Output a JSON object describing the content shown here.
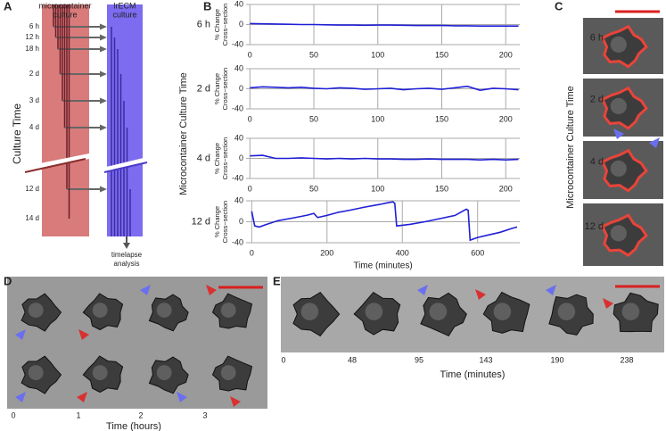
{
  "panel_a": {
    "letter": "A",
    "microcontainer": [
      "microcontainer",
      "culture"
    ],
    "lrecm": [
      "lrECM",
      "culture"
    ],
    "times": [
      "6 h",
      "12 h",
      "18 h",
      "2 d",
      "3 d",
      "4 d",
      "12 d",
      "14 d"
    ],
    "axis_label": "Culture Time",
    "analysis": [
      "timelapse",
      "analysis"
    ]
  },
  "panel_b": {
    "letter": "B",
    "side_label": "Microcontainer Culture Time"
  },
  "chart_data": [
    {
      "type": "line",
      "row_label": "6 h",
      "ylabel": [
        "% Change",
        "Cross−section"
      ],
      "x": [
        0,
        10,
        20,
        30,
        40,
        50,
        60,
        70,
        80,
        90,
        100,
        110,
        120,
        130,
        140,
        150,
        160,
        170,
        180,
        190,
        200,
        210
      ],
      "series": [
        {
          "color": "#1f1fd6",
          "values": [
            2,
            1.5,
            1,
            0.5,
            0,
            0,
            -0.5,
            -1,
            -1,
            -1.5,
            -1,
            -1,
            -1.5,
            -2,
            -2,
            -2,
            -2.5,
            -2.5,
            -3,
            -3,
            -3,
            -3
          ]
        }
      ],
      "xlim": [
        -3,
        211
      ],
      "ylim": [
        -40,
        40
      ],
      "xticks": [
        0,
        50,
        100,
        150,
        200
      ],
      "yticks": [
        -40,
        0,
        40
      ],
      "grid": true
    },
    {
      "type": "line",
      "row_label": "2 d",
      "ylabel": [
        "% Change",
        "Cross−section"
      ],
      "x": [
        0,
        10,
        20,
        30,
        40,
        50,
        60,
        70,
        80,
        90,
        100,
        110,
        120,
        130,
        140,
        150,
        160,
        170,
        180,
        190,
        200,
        210
      ],
      "series": [
        {
          "color": "#1f1fd6",
          "values": [
            2,
            4,
            3,
            2,
            3,
            1,
            0,
            2,
            1,
            -1,
            0,
            1,
            -2,
            0,
            1,
            -1,
            2,
            5,
            -3,
            1,
            0,
            -2
          ]
        }
      ],
      "xlim": [
        -3,
        211
      ],
      "ylim": [
        -40,
        40
      ],
      "xticks": [
        0,
        50,
        100,
        150,
        200
      ],
      "yticks": [
        -40,
        0,
        40
      ],
      "grid": true
    },
    {
      "type": "line",
      "row_label": "4 d",
      "ylabel": [
        "% Change",
        "Cross−section"
      ],
      "x": [
        0,
        10,
        20,
        30,
        40,
        50,
        60,
        70,
        80,
        90,
        100,
        110,
        120,
        130,
        140,
        150,
        160,
        170,
        180,
        190,
        200,
        210
      ],
      "series": [
        {
          "color": "#1f1fd6",
          "values": [
            5,
            6,
            0,
            0,
            1,
            0,
            -1,
            0,
            -1,
            0,
            -1,
            -1,
            -2,
            -2,
            -1,
            -2,
            -2,
            -2,
            -3,
            -2,
            -3,
            -2
          ]
        }
      ],
      "xlim": [
        -3,
        211
      ],
      "ylim": [
        -40,
        40
      ],
      "xticks": [
        0,
        50,
        100,
        150,
        200
      ],
      "yticks": [
        -40,
        0,
        40
      ],
      "grid": true
    },
    {
      "type": "line",
      "row_label": "12 d",
      "ylabel": [
        "% Change",
        "Cross−section"
      ],
      "xlabel": "Time (minutes)",
      "x": [
        0,
        8,
        20,
        40,
        70,
        100,
        130,
        150,
        165,
        175,
        200,
        230,
        260,
        300,
        340,
        360,
        375,
        380,
        385,
        420,
        460,
        500,
        540,
        570,
        575,
        580,
        600,
        630,
        660,
        690,
        705
      ],
      "series": [
        {
          "color": "#1f1fd6",
          "values": [
            20,
            -8,
            -10,
            -5,
            2,
            6,
            10,
            13,
            16,
            8,
            12,
            18,
            22,
            28,
            33,
            36,
            38,
            35,
            -8,
            -5,
            0,
            6,
            12,
            24,
            22,
            -35,
            -30,
            -25,
            -20,
            -13,
            -10
          ]
        }
      ],
      "xlim": [
        -15,
        712
      ],
      "ylim": [
        -40,
        40
      ],
      "xticks": [
        0,
        200,
        400,
        600
      ],
      "yticks": [
        -40,
        0,
        40
      ],
      "grid": true
    }
  ],
  "panel_c": {
    "letter": "C",
    "side_label": "Microcontainer Culture Time",
    "rows": [
      "6 h",
      "2 d",
      "4 d",
      "12 d"
    ]
  },
  "panel_d": {
    "letter": "D",
    "ticks": [
      "0",
      "1",
      "2",
      "3"
    ],
    "xlabel": "Time (hours)"
  },
  "panel_e": {
    "letter": "E",
    "ticks": [
      "0",
      "48",
      "95",
      "143",
      "190",
      "238"
    ],
    "xlabel": "Time (minutes)"
  }
}
